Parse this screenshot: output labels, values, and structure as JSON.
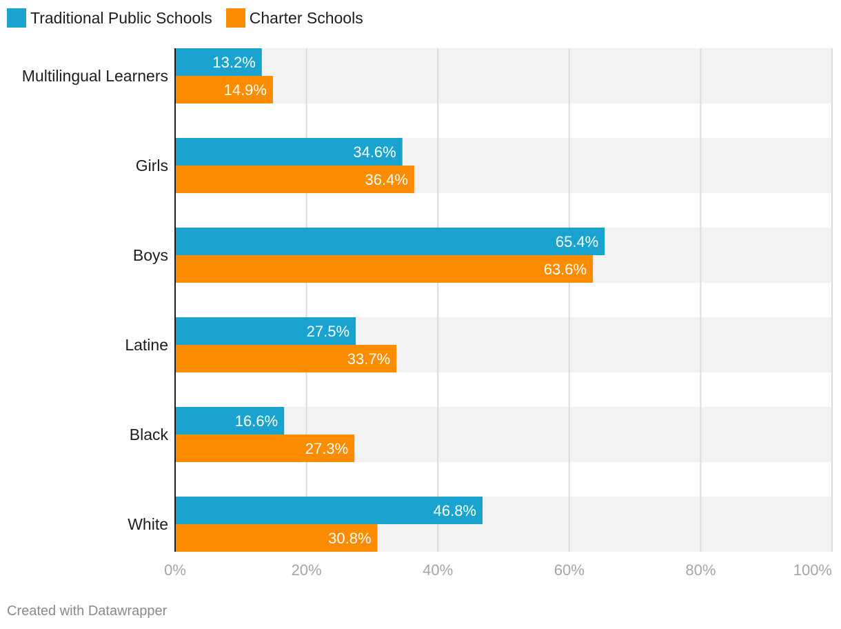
{
  "legend": [
    {
      "name": "Traditional Public Schools",
      "color": "#1aa3cf"
    },
    {
      "name": "Charter Schools",
      "color": "#fb8c00"
    }
  ],
  "chart_data": {
    "type": "bar",
    "orientation": "horizontal",
    "categories": [
      "Multilingual Learners",
      "Girls",
      "Boys",
      "Latine",
      "Black",
      "White"
    ],
    "series": [
      {
        "name": "Traditional Public Schools",
        "color": "#1aa3cf",
        "values": [
          13.2,
          34.6,
          65.4,
          27.5,
          16.6,
          46.8
        ]
      },
      {
        "name": "Charter Schools",
        "color": "#fb8c00",
        "values": [
          14.9,
          36.4,
          63.6,
          33.7,
          27.3,
          30.8
        ]
      }
    ],
    "value_labels": [
      [
        "13.2%",
        "34.6%",
        "65.4%",
        "27.5%",
        "16.6%",
        "46.8%"
      ],
      [
        "14.9%",
        "36.4%",
        "63.6%",
        "33.7%",
        "27.3%",
        "30.8%"
      ]
    ],
    "xlim": [
      0,
      100
    ],
    "xticks": [
      0,
      20,
      40,
      60,
      80,
      100
    ],
    "xtick_labels": [
      "0%",
      "20%",
      "40%",
      "60%",
      "80%",
      "100%"
    ],
    "grid": true,
    "row_background": "#f2f2f2"
  },
  "footer": {
    "text": "Created with Datawrapper"
  }
}
